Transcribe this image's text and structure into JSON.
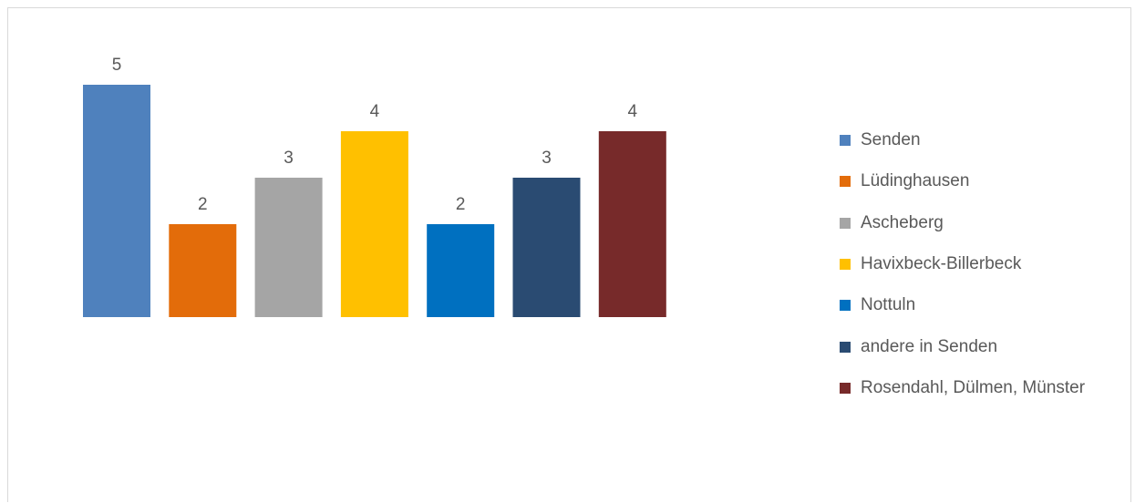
{
  "chart_data": {
    "type": "bar",
    "categories": [
      "Senden",
      "Lüdinghausen",
      "Ascheberg",
      "Havixbeck-Billerbeck",
      "Nottuln",
      "andere in Senden",
      "Rosendahl, Dülmen, Münster"
    ],
    "values": [
      5,
      2,
      3,
      4,
      2,
      3,
      4
    ],
    "data_labels": [
      "5",
      "2",
      "3",
      "4",
      "2",
      "3",
      "4"
    ],
    "colors": [
      "#4F81BD",
      "#E36C0A",
      "#A5A5A5",
      "#FFC000",
      "#0070C0",
      "#2A4B72",
      "#772A2A"
    ],
    "ylim": [
      0,
      5
    ],
    "grid": false,
    "axes_visible": false,
    "legend": "right",
    "title": "",
    "xlabel": "",
    "ylabel": ""
  }
}
